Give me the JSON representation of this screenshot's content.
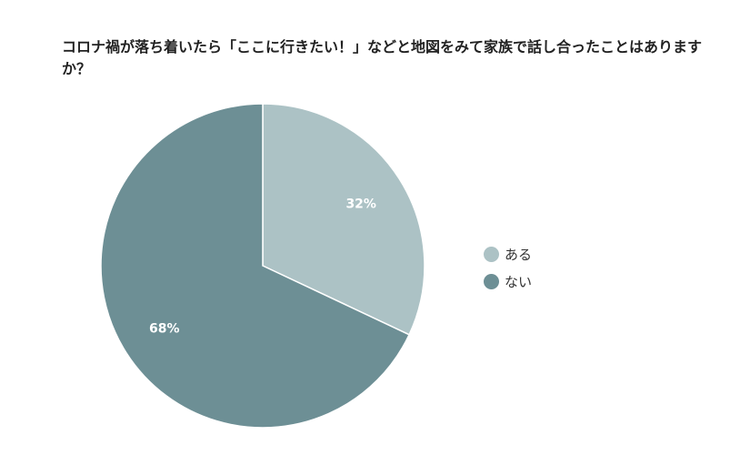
{
  "title": "コロナ禍が落ち着いたら「ここに行きたい！」などと地図をみて家族で話し合ったことはありますか？",
  "chart_data": {
    "type": "pie",
    "title": "コロナ禍が落ち着いたら「ここに行きたい！」などと地図をみて家族で話し合ったことはありますか？",
    "slices": [
      {
        "label": "ある",
        "value": 32,
        "display": "32%",
        "color": "#acc2c5"
      },
      {
        "label": "ない",
        "value": 68,
        "display": "68%",
        "color": "#6d8f95"
      }
    ],
    "legend_position": "right",
    "start_angle": "top, clockwise"
  }
}
